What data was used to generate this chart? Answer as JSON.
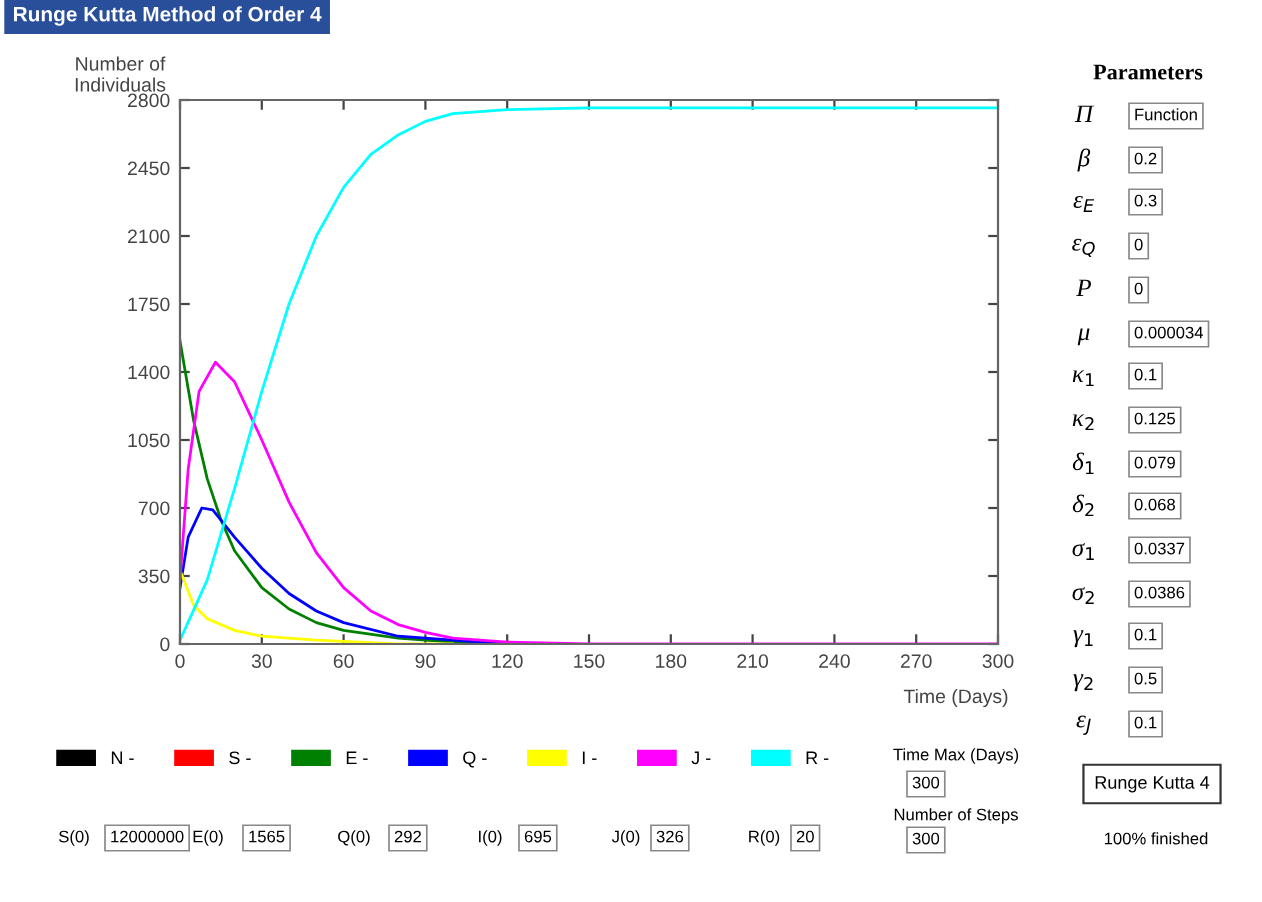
{
  "chart_data": {
    "type": "line",
    "title": "Runge Kutta Method of Order 4",
    "ylabel": "Number of\nIndividuals",
    "xlabel": "Time (Days)",
    "xlim": [
      0,
      300
    ],
    "xticks": [
      0,
      30,
      60,
      90,
      120,
      150,
      180,
      210,
      240,
      270,
      300
    ],
    "ylim": [
      0,
      2800
    ],
    "yticks": [
      0,
      350,
      700,
      1050,
      1400,
      1750,
      2100,
      2450,
      2800
    ],
    "grid": false,
    "legend": "bottom",
    "marker": "none",
    "line_style": "solid",
    "series": [
      {
        "name": "N -",
        "color": "#000000"
      },
      {
        "name": "S -",
        "color": "#ff0000"
      },
      {
        "name": "E -",
        "color": "#008000",
        "x": [
          0,
          5,
          10,
          15,
          20,
          30,
          40,
          50,
          60,
          80,
          100,
          120
        ],
        "values": [
          1560,
          1150,
          850,
          640,
          480,
          290,
          180,
          110,
          70,
          30,
          10,
          0
        ]
      },
      {
        "name": "Q -",
        "color": "#0000ff",
        "x": [
          0,
          3,
          8,
          12,
          20,
          30,
          40,
          50,
          60,
          80,
          100,
          120
        ],
        "values": [
          290,
          550,
          700,
          690,
          550,
          390,
          260,
          170,
          110,
          40,
          20,
          0
        ]
      },
      {
        "name": "I -",
        "color": "#ffff00",
        "x": [
          0,
          5,
          10,
          20,
          30,
          50,
          80,
          100
        ],
        "values": [
          380,
          200,
          130,
          70,
          40,
          20,
          0,
          0
        ]
      },
      {
        "name": "J -",
        "color": "#ff00ff",
        "x": [
          0,
          3,
          7,
          13,
          20,
          30,
          40,
          50,
          60,
          70,
          80,
          90,
          100,
          120,
          150,
          300
        ],
        "values": [
          330,
          900,
          1300,
          1450,
          1350,
          1050,
          730,
          470,
          290,
          170,
          100,
          60,
          30,
          10,
          0,
          0
        ]
      },
      {
        "name": "R -",
        "color": "#00ffff",
        "x": [
          0,
          10,
          20,
          30,
          40,
          50,
          60,
          70,
          80,
          90,
          100,
          120,
          150,
          200,
          300
        ],
        "values": [
          20,
          330,
          800,
          1300,
          1750,
          2100,
          2350,
          2520,
          2620,
          2690,
          2730,
          2750,
          2760,
          2760,
          2760
        ]
      }
    ],
    "annotations": [
      "Parameters",
      "Π",
      "Function",
      "β",
      "0.2",
      "ε$_{E}$",
      "0.3",
      "ε$_{Q}$",
      "0",
      "P",
      "0",
      "μ",
      "0.000034",
      "κ$_{1}$",
      "0.1",
      "κ$_{2}$",
      "0.125",
      "δ$_{1}$",
      "0.079",
      "δ$_{2}$",
      "0.068",
      "σ$_{1}$",
      "0.0337",
      "σ$_{2}$",
      "0.0386",
      "γ$_{1}$",
      "0.1",
      "γ$_{2}$",
      "0.5",
      "ε$_{J}$",
      "0.1",
      "Runge Kutta 4",
      "100% finished",
      "Time Max (Days)",
      "300",
      "Number of Steps",
      "300",
      "S(0)",
      "12000000",
      "E(0)",
      "1565",
      "Q(0)",
      "292",
      "I(0)",
      "695",
      "J(0)",
      "326",
      "R(0)",
      "20"
    ]
  }
}
